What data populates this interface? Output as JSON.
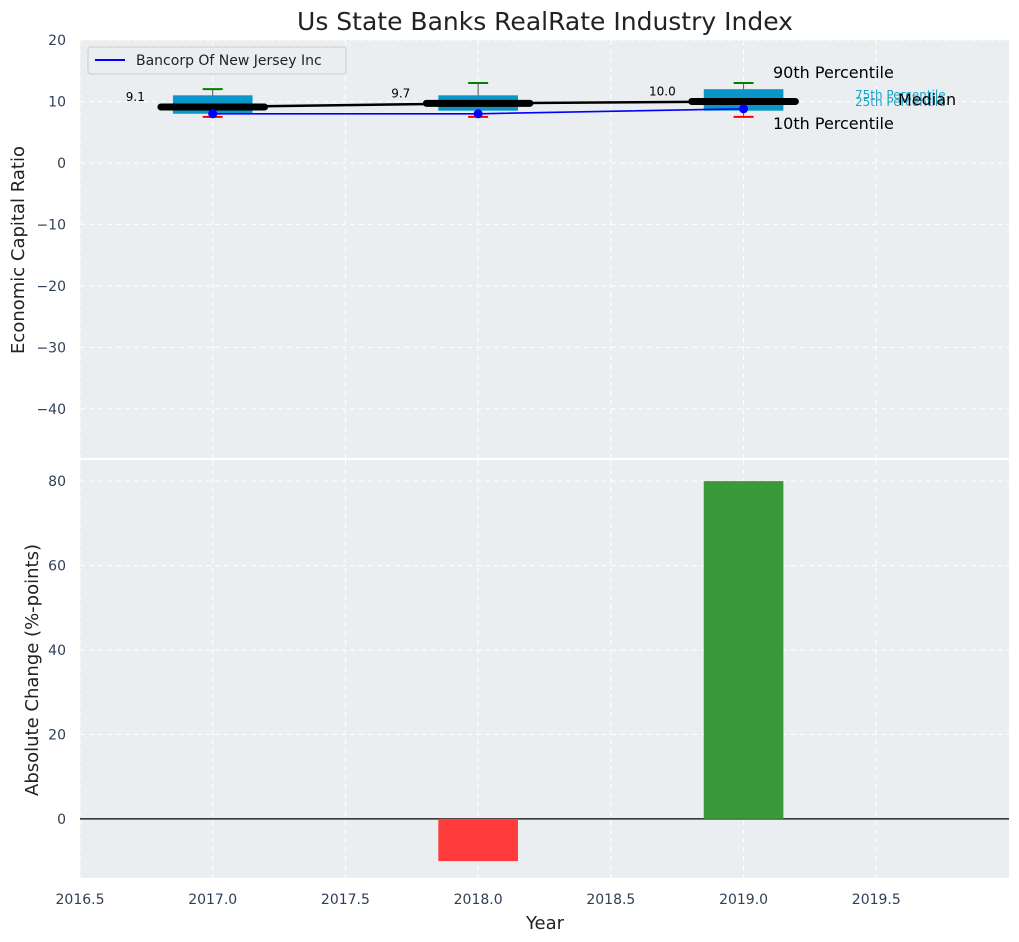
{
  "chart_data": [
    {
      "type": "box",
      "title": "Us State Banks RealRate Industry Index",
      "ylabel": "Economic Capital Ratio",
      "ylim": [
        -48,
        20
      ],
      "yticks": [
        20,
        10,
        0,
        -10,
        -20,
        -30,
        -40
      ],
      "xlim": [
        2016.5,
        2020.0
      ],
      "grid": true,
      "legend": {
        "placement": "top-left",
        "entries": [
          "Bancorp Of New Jersey Inc"
        ]
      },
      "years": [
        2017,
        2018,
        2019
      ],
      "boxes": [
        {
          "year": 2017,
          "p10": 7.5,
          "p25": 8.0,
          "median": 9.1,
          "p75": 11.0,
          "p90": 12.0
        },
        {
          "year": 2018,
          "p10": 7.5,
          "p25": 8.5,
          "median": 9.7,
          "p75": 11.0,
          "p90": 13.0
        },
        {
          "year": 2019,
          "p10": 7.5,
          "p25": 8.5,
          "median": 10.0,
          "p75": 12.0,
          "p90": 13.0
        }
      ],
      "median_labels": [
        "9.1",
        "9.7",
        "10.0"
      ],
      "series": [
        {
          "name": "Bancorp Of New Jersey Inc",
          "color": "#0000ff",
          "x": [
            2017,
            2018,
            2019
          ],
          "values": [
            8.0,
            8.0,
            8.8
          ]
        }
      ],
      "annotations": {
        "p90": "90th Percentile",
        "p75": "75th Percentile",
        "median": "Median",
        "p25": "25th Percentile",
        "p10": "10th Percentile"
      }
    },
    {
      "type": "bar",
      "ylabel": "Absolute Change (%-points)",
      "xlabel": "Year",
      "ylim": [
        -14,
        85
      ],
      "yticks": [
        80,
        60,
        40,
        20,
        0
      ],
      "xlim": [
        2016.5,
        2020.0
      ],
      "xticks": [
        "2016.5",
        "2017.0",
        "2017.5",
        "2018.0",
        "2018.5",
        "2019.0",
        "2019.5"
      ],
      "grid": true,
      "x": [
        2018,
        2019
      ],
      "values": [
        -10,
        80
      ],
      "colors": [
        "#ff3b3b",
        "#3a9a3a"
      ]
    }
  ],
  "colors": {
    "plot_bg": "#eaeef0",
    "box_fill": "#0a96c8",
    "median_line": "#000000",
    "whisker_top": "#008000",
    "whisker_bottom": "#ff0000"
  }
}
